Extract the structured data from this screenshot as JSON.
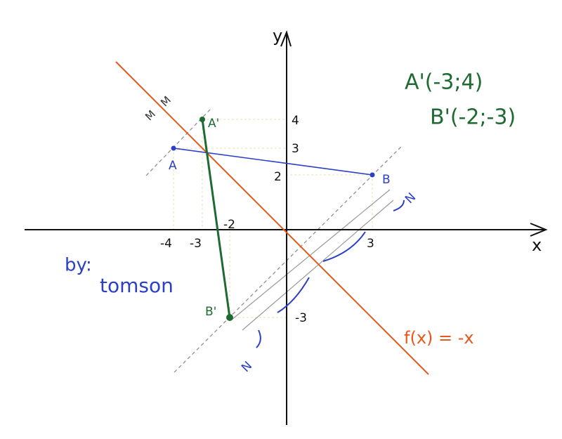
{
  "axes": {
    "x_label": "x",
    "y_label": "y"
  },
  "ticks": {
    "y4": "4",
    "y3": "3",
    "y2": "2",
    "y_neg3": "-3",
    "x_neg4": "-4",
    "x_neg3": "-3",
    "x_neg2": "-2",
    "x3": "3"
  },
  "points": {
    "A": "A",
    "B": "B",
    "A_prime": "A'",
    "B_prime": "B'"
  },
  "marks": {
    "m1": "M",
    "m2": "M",
    "n1": "N",
    "n2": "N"
  },
  "results": {
    "a_prime": "A'(-3;4)",
    "b_prime": "B'(-2;-3)"
  },
  "function_label": "f(x) = -x",
  "signature": {
    "by": "by:",
    "name": "tomson"
  }
}
